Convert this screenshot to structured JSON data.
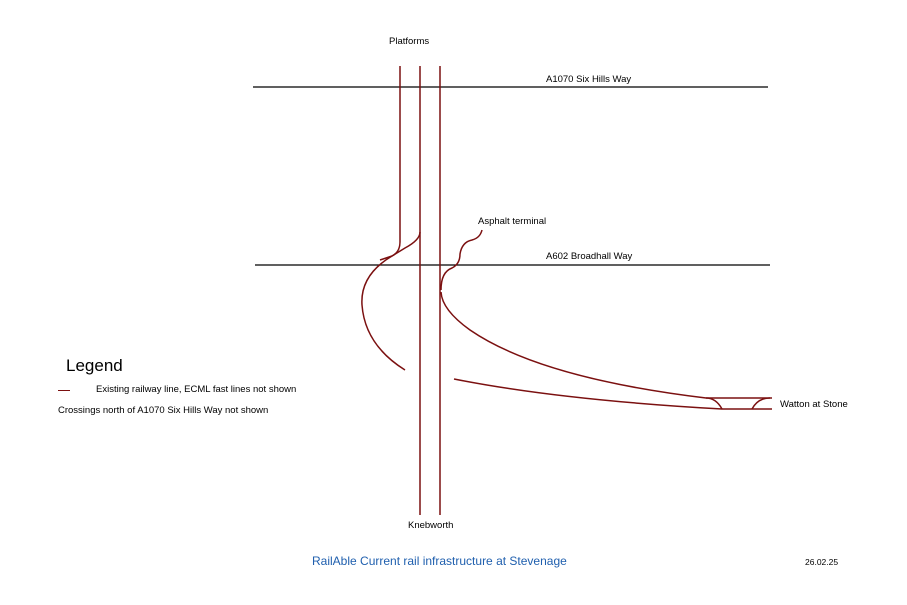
{
  "labels": {
    "platforms": "Platforms",
    "road_a1070": "A1070 Six Hills Way",
    "road_a602": "A602 Broadhall Way",
    "asphalt": "Asphalt terminal",
    "watton": "Watton at Stone",
    "knebworth": "Knebworth"
  },
  "legend": {
    "title": "Legend",
    "line_item": "Existing railway line, ECML fast lines not shown",
    "note": "Crossings north of A1070 Six Hills Way not shown"
  },
  "footer": {
    "title": "RailAble  Current rail infrastructure at Stevenage",
    "date": "26.02.25"
  },
  "colors": {
    "rail": "#7b1010",
    "road": "#000000",
    "footer_text": "#1f5fae"
  }
}
